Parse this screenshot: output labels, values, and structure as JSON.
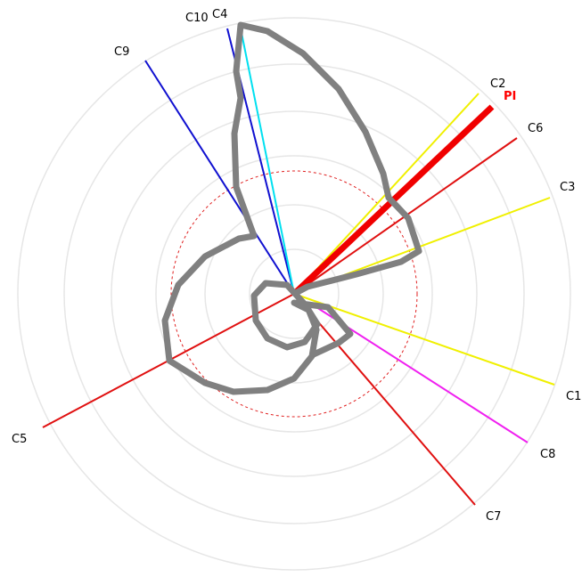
{
  "labels": [
    "C10",
    "C4",
    "C9",
    "C2",
    "PI",
    "C6",
    "C3",
    "C1",
    "C8",
    "C7",
    "C5"
  ]
}
